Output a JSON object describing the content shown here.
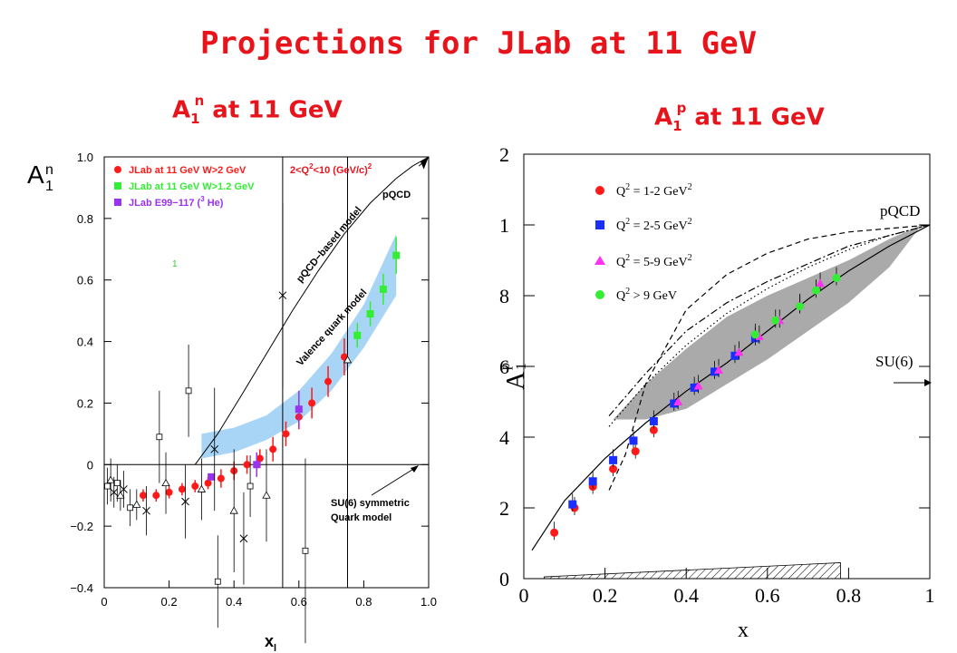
{
  "header": {
    "title": "Projections for JLab at 11 GeV",
    "left_subtitle": {
      "base": "A",
      "sub": "1",
      "sup": "n",
      "rest": " at 11 GeV"
    },
    "right_subtitle": {
      "base": "A",
      "sub": "1",
      "sup": "p",
      "rest": " at 11 GeV"
    }
  },
  "colors": {
    "accent_red": "#e8141c",
    "jlab_red": "#ff1a1a",
    "jlab_green": "#33ee33",
    "e99_purple": "#9a33ee",
    "band_blue": "#a8d4f5",
    "blue": "#1a2eff",
    "magenta": "#ff33ee"
  },
  "chart_data": [
    {
      "type": "scatter",
      "panel": "left",
      "ylabel": {
        "base": "A",
        "sup": "n",
        "sub": "1"
      },
      "xlabel": {
        "base": "x",
        "sub": "l"
      },
      "xlim": [
        0,
        1.0
      ],
      "ylim": [
        -0.4,
        1.0
      ],
      "xticks": [
        "0",
        "0.2",
        "0.4",
        "0.6",
        "0.8",
        "1.0"
      ],
      "yticks": [
        "−0.4",
        "−0.2",
        "0",
        "0.2",
        "0.4",
        "0.6",
        "0.8",
        "1.0"
      ],
      "legend": [
        "JLab at 11 GeV W>2 GeV",
        "JLab at 11 GeV W>1.2 GeV",
        "JLab E99−117 (",
        " He)"
      ],
      "legend_sup": "3",
      "q2_label": "2<Q",
      "q2_label2": "<10 (GeV/c)",
      "annotations": {
        "pqcd": "pQCD",
        "pqcd_model": "pQCD−based model",
        "valence": "Valence quark model",
        "su6_line1": "SU(6) symmetric",
        "su6_line2": "Quark model",
        "stray": "1"
      },
      "series": [
        {
          "name": "JLab at 11 GeV W>2 GeV",
          "marker": "circle",
          "color": "#ff1a1a",
          "x": [
            0.12,
            0.16,
            0.2,
            0.24,
            0.28,
            0.32,
            0.36,
            0.4,
            0.44,
            0.48,
            0.52,
            0.56,
            0.6,
            0.64,
            0.69,
            0.74
          ],
          "y": [
            -0.1,
            -0.1,
            -0.09,
            -0.08,
            -0.07,
            -0.06,
            -0.045,
            -0.02,
            0.0,
            0.02,
            0.05,
            0.1,
            0.155,
            0.2,
            0.27,
            0.35
          ],
          "err": [
            0.02,
            0.02,
            0.02,
            0.02,
            0.02,
            0.02,
            0.03,
            0.03,
            0.03,
            0.03,
            0.04,
            0.04,
            0.04,
            0.05,
            0.05,
            0.06
          ]
        },
        {
          "name": "JLab at 11 GeV W>1.2 GeV",
          "marker": "square",
          "color": "#33ee33",
          "x": [
            0.78,
            0.82,
            0.86,
            0.9
          ],
          "y": [
            0.42,
            0.49,
            0.57,
            0.68
          ],
          "err": [
            0.04,
            0.04,
            0.05,
            0.06
          ]
        },
        {
          "name": "JLab E99−117 (3He)",
          "marker": "square",
          "color": "#9a33ee",
          "x": [
            0.33,
            0.47,
            0.6
          ],
          "y": [
            -0.04,
            0.0,
            0.18
          ],
          "err": [
            0.01,
            0.04,
            0.06
          ]
        },
        {
          "name": "world data",
          "marker": "open",
          "color": "#000000",
          "x": [
            0.01,
            0.02,
            0.03,
            0.04,
            0.05,
            0.06,
            0.08,
            0.1,
            0.13,
            0.17,
            0.19,
            0.25,
            0.26,
            0.3,
            0.34,
            0.35,
            0.4,
            0.43,
            0.45,
            0.5,
            0.55,
            0.62,
            0.75
          ],
          "y": [
            -0.07,
            -0.05,
            -0.09,
            -0.06,
            -0.1,
            -0.08,
            -0.14,
            -0.13,
            -0.15,
            0.09,
            -0.06,
            -0.12,
            0.24,
            -0.08,
            0.05,
            -0.38,
            -0.15,
            -0.24,
            -0.07,
            -0.1,
            0.55,
            -0.28,
            0.34
          ],
          "err": [
            0.06,
            0.07,
            0.05,
            0.06,
            0.05,
            0.06,
            0.06,
            0.05,
            0.08,
            0.15,
            0.1,
            0.12,
            0.15,
            0.1,
            0.2,
            0.15,
            0.2,
            0.15,
            0.1,
            0.15,
            0.3,
            0.3,
            0.32
          ]
        }
      ],
      "curves": [
        {
          "name": "pQCD−based model",
          "x": [
            0.28,
            0.35,
            0.42,
            0.5,
            0.58,
            0.66,
            0.74,
            0.82,
            0.9,
            0.95,
            1.0
          ],
          "y": [
            0.0,
            0.1,
            0.22,
            0.36,
            0.5,
            0.63,
            0.75,
            0.85,
            0.93,
            0.97,
            1.0
          ]
        }
      ],
      "band": {
        "name": "Valence quark model",
        "x": [
          0.3,
          0.4,
          0.5,
          0.6,
          0.7,
          0.8,
          0.9
        ],
        "lower": [
          0.02,
          0.04,
          0.08,
          0.14,
          0.24,
          0.38,
          0.55
        ],
        "upper": [
          0.1,
          0.12,
          0.16,
          0.24,
          0.36,
          0.52,
          0.75
        ]
      },
      "vertical_lines_x": [
        0.55,
        0.75
      ]
    },
    {
      "type": "scatter",
      "panel": "right",
      "ylabel": {
        "base": "A",
        "sup": "p",
        "sub": "1"
      },
      "xlabel": "x",
      "xlim": [
        0,
        1.0
      ],
      "ylim": [
        0,
        1.2
      ],
      "xticks": [
        "0",
        "0.2",
        "0.4",
        "0.6",
        "0.8",
        "1"
      ],
      "yticks": [
        "0",
        "0.2",
        "0.4",
        "0.6",
        "0.8",
        "1",
        "1.2"
      ],
      "legend": [
        "Q",
        " = 1-2 GeV",
        "Q",
        " = 2-5 GeV",
        "Q",
        " = 5-9 GeV",
        "Q",
        " > 9 GeV"
      ],
      "legend_sup": "2",
      "annotations": {
        "pqcd": "pQCD",
        "su6": "SU(6)"
      },
      "series": [
        {
          "name": "Q2 = 1-2 GeV2",
          "marker": "circle",
          "color": "#ff1a1a",
          "x": [
            0.075,
            0.125,
            0.17,
            0.22,
            0.275,
            0.32
          ],
          "y": [
            0.13,
            0.2,
            0.26,
            0.31,
            0.36,
            0.42
          ]
        },
        {
          "name": "Q2 = 2-5 GeV2",
          "marker": "square",
          "color": "#1a2eff",
          "x": [
            0.12,
            0.17,
            0.22,
            0.27,
            0.32,
            0.37,
            0.42,
            0.47,
            0.52,
            0.57
          ],
          "y": [
            0.21,
            0.275,
            0.335,
            0.39,
            0.445,
            0.495,
            0.54,
            0.585,
            0.63,
            0.68
          ]
        },
        {
          "name": "Q2 = 5-9 GeV2",
          "marker": "triangle",
          "color": "#ff33ee",
          "x": [
            0.38,
            0.43,
            0.48,
            0.53,
            0.58,
            0.63,
            0.68,
            0.73
          ],
          "y": [
            0.5,
            0.545,
            0.59,
            0.64,
            0.685,
            0.73,
            0.775,
            0.835
          ]
        },
        {
          "name": "Q2 > 9 GeV2",
          "marker": "circle",
          "color": "#33ee33",
          "x": [
            0.57,
            0.62,
            0.68,
            0.72,
            0.77
          ],
          "y": [
            0.69,
            0.73,
            0.77,
            0.815,
            0.85
          ]
        }
      ],
      "curves": [
        {
          "name": "solid",
          "style": "solid",
          "x": [
            0.02,
            0.1,
            0.2,
            0.3,
            0.4,
            0.5,
            0.6,
            0.7,
            0.8,
            0.9,
            1.0
          ],
          "y": [
            0.08,
            0.22,
            0.34,
            0.44,
            0.53,
            0.61,
            0.7,
            0.79,
            0.87,
            0.94,
            1.0
          ]
        },
        {
          "name": "dashed",
          "style": "dashed",
          "x": [
            0.21,
            0.25,
            0.3,
            0.4,
            0.5,
            0.6,
            0.7,
            0.8,
            0.9,
            1.0
          ],
          "y": [
            0.25,
            0.35,
            0.55,
            0.76,
            0.86,
            0.92,
            0.96,
            0.98,
            0.99,
            1.0
          ]
        },
        {
          "name": "dotted",
          "style": "dotted",
          "x": [
            0.21,
            0.3,
            0.4,
            0.5,
            0.6,
            0.7,
            0.8,
            0.9,
            1.0
          ],
          "y": [
            0.43,
            0.55,
            0.66,
            0.75,
            0.82,
            0.88,
            0.93,
            0.97,
            1.0
          ]
        },
        {
          "name": "dashdot",
          "style": "dashdot",
          "x": [
            0.21,
            0.3,
            0.4,
            0.5,
            0.6,
            0.7,
            0.8,
            0.9,
            1.0
          ],
          "y": [
            0.46,
            0.58,
            0.7,
            0.78,
            0.84,
            0.89,
            0.94,
            0.97,
            1.0
          ]
        }
      ],
      "band": {
        "x": [
          0.22,
          0.3,
          0.4,
          0.5,
          0.6,
          0.7,
          0.8,
          0.9,
          0.98
        ],
        "lower": [
          0.45,
          0.45,
          0.48,
          0.55,
          0.62,
          0.7,
          0.78,
          0.88,
          1.0
        ],
        "upper": [
          0.45,
          0.55,
          0.65,
          0.74,
          0.8,
          0.85,
          0.9,
          0.96,
          1.0
        ]
      },
      "hatched_band": {
        "x": [
          0.05,
          0.78
        ],
        "y_left": 0.005,
        "y_right": 0.045
      }
    }
  ]
}
